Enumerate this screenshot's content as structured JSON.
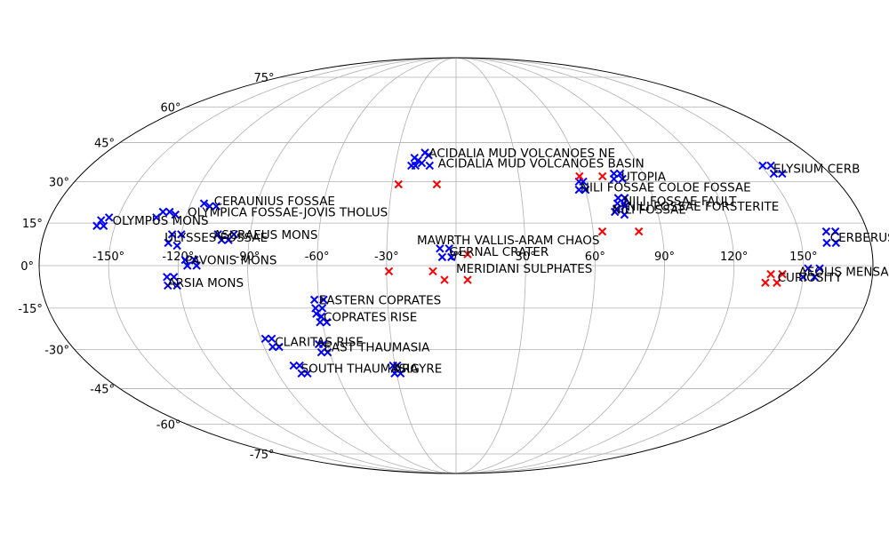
{
  "chart_data": {
    "type": "scatter",
    "projection": "mollweide",
    "grid": true,
    "colors": {
      "site": "#0000ff",
      "other": "#ff0000"
    },
    "lon_ticks": [
      "-150°",
      "-120°",
      "-90°",
      "-60°",
      "-30°",
      "0°",
      "30°",
      "60°",
      "90°",
      "120°",
      "150°"
    ],
    "lon_tick_values": [
      -150,
      -120,
      -90,
      -60,
      -30,
      0,
      30,
      60,
      90,
      120,
      150
    ],
    "lat_ticks": [
      "-75°",
      "-60°",
      "-45°",
      "-30°",
      "-15°",
      "0°",
      "15°",
      "30°",
      "45°",
      "60°",
      "75°"
    ],
    "lat_tick_values": [
      -75,
      -60,
      -45,
      -30,
      -15,
      0,
      15,
      30,
      45,
      60,
      75
    ],
    "series": [
      {
        "color": "#0000ff",
        "points": [
          [
            -14,
            40
          ],
          [
            -16,
            41
          ],
          [
            -19,
            38
          ],
          [
            -21,
            39
          ],
          [
            -13,
            36
          ],
          [
            -17,
            37
          ],
          [
            -20,
            36
          ],
          [
            -22,
            36
          ],
          [
            -154,
            17
          ],
          [
            -157,
            16
          ],
          [
            -155,
            14
          ],
          [
            -158,
            14
          ],
          [
            -128,
            19
          ],
          [
            -131,
            19
          ],
          [
            -125,
            18
          ],
          [
            -133,
            17
          ],
          [
            -111,
            21
          ],
          [
            -114,
            22
          ],
          [
            -108,
            21
          ],
          [
            -120,
            11
          ],
          [
            -124,
            11
          ],
          [
            -125,
            8
          ],
          [
            -121,
            7
          ],
          [
            -99,
            9
          ],
          [
            -102,
            9
          ],
          [
            -97,
            11
          ],
          [
            -104,
            11
          ],
          [
            -112,
            0
          ],
          [
            -113,
            2
          ],
          [
            -117,
            2
          ],
          [
            -116,
            0
          ],
          [
            -122,
            -4
          ],
          [
            -125,
            -4
          ],
          [
            -121,
            -7
          ],
          [
            -125,
            -7
          ],
          [
            -58,
            -12
          ],
          [
            -62,
            -12
          ],
          [
            -59,
            -15
          ],
          [
            -62,
            -15
          ],
          [
            -60,
            -18
          ],
          [
            -62,
            -17
          ],
          [
            -58,
            -20
          ],
          [
            -61,
            -20
          ],
          [
            -85,
            -26
          ],
          [
            -88,
            -26
          ],
          [
            -83,
            -29
          ],
          [
            -86,
            -29
          ],
          [
            -62,
            -28
          ],
          [
            -64,
            -28
          ],
          [
            -61,
            -31
          ],
          [
            -64,
            -31
          ],
          [
            -77,
            -36
          ],
          [
            -80,
            -36
          ],
          [
            -75,
            -39
          ],
          [
            -78,
            -39
          ],
          [
            -29,
            -36
          ],
          [
            -31,
            -36
          ],
          [
            -28,
            -39
          ],
          [
            -31,
            -39
          ],
          [
            -3,
            6
          ],
          [
            -7,
            6
          ],
          [
            -2,
            3
          ],
          [
            -6,
            3
          ],
          [
            58,
            30
          ],
          [
            60,
            30
          ],
          [
            57,
            27
          ],
          [
            60,
            27
          ],
          [
            76,
            33
          ],
          [
            79,
            33
          ],
          [
            75,
            31
          ],
          [
            79,
            31
          ],
          [
            74,
            24
          ],
          [
            77,
            24
          ],
          [
            73,
            22
          ],
          [
            76,
            22
          ],
          [
            72,
            20
          ],
          [
            76,
            21
          ],
          [
            71,
            19
          ],
          [
            75,
            18
          ],
          [
            151,
            36
          ],
          [
            155,
            36
          ],
          [
            153,
            33
          ],
          [
            157,
            33
          ],
          [
            162,
            12
          ],
          [
            166,
            12
          ],
          [
            161,
            8
          ],
          [
            165,
            8
          ],
          [
            152,
            -1
          ],
          [
            157,
            -1
          ],
          [
            150,
            -4
          ],
          [
            155,
            -4
          ]
        ]
      },
      {
        "color": "#ff0000",
        "points": [
          [
            -27,
            29
          ],
          [
            -9,
            29
          ],
          [
            59,
            32
          ],
          [
            70,
            32
          ],
          [
            64,
            12
          ],
          [
            80,
            12
          ],
          [
            -29,
            -2
          ],
          [
            -10,
            -2
          ],
          [
            -5,
            -5
          ],
          [
            5,
            4
          ],
          [
            5,
            -5
          ],
          [
            136,
            -3
          ],
          [
            141,
            -3
          ],
          [
            134,
            -6
          ],
          [
            139,
            -6
          ]
        ]
      }
    ],
    "annotations": [
      {
        "text": "ACIDALIA MUD VOLCANOES NE",
        "lon": -14,
        "lat": 41
      },
      {
        "text": "ACIDALIA MUD VOLCANOES BASIN",
        "lon": -9,
        "lat": 37
      },
      {
        "text": "ELYSIUM CERB",
        "lon": 155,
        "lat": 35
      },
      {
        "text": "UTOPIA",
        "lon": 79,
        "lat": 32
      },
      {
        "text": "NILI FOSSAE COLOE FOSSAE",
        "lon": 58,
        "lat": 28
      },
      {
        "text": "NILI FOSSAE FAULT",
        "lon": 76,
        "lat": 23
      },
      {
        "text": "NILI FOSSAE FORSTERITE",
        "lon": 77,
        "lat": 21
      },
      {
        "text": "NILI FOSSAE",
        "lon": 70,
        "lat": 20
      },
      {
        "text": "CERAUNIUS FOSSAE",
        "lon": -110,
        "lat": 23
      },
      {
        "text": "OLYMPICA FOSSAE-JOVIS THOLUS",
        "lon": -120,
        "lat": 19
      },
      {
        "text": "OLYMPUS MONS",
        "lon": -152,
        "lat": 16
      },
      {
        "text": "ASCRAEUS MONS",
        "lon": -106,
        "lat": 11
      },
      {
        "text": "ULYSSES FOSSAE",
        "lon": -127,
        "lat": 10
      },
      {
        "text": "PAVONIS MONS",
        "lon": -117,
        "lat": 2
      },
      {
        "text": "ARSIA MONS",
        "lon": -125,
        "lat": -6
      },
      {
        "text": "MAWRTH VALLIS-ARAM CHAOS",
        "lon": -17,
        "lat": 9
      },
      {
        "text": "GERNAL CRATER",
        "lon": -3,
        "lat": 5
      },
      {
        "text": "MERIDIANI SULPHATES",
        "lon": 0,
        "lat": -1
      },
      {
        "text": "CERBERUS",
        "lon": 163,
        "lat": 10
      },
      {
        "text": "AEOLIS MENSAE",
        "lon": 148,
        "lat": -2
      },
      {
        "text": "CURIOSITY",
        "lon": 139,
        "lat": -4
      },
      {
        "text": "EASTERN COPRATES",
        "lon": -60,
        "lat": -12
      },
      {
        "text": "COPRATES RISE",
        "lon": -59,
        "lat": -18
      },
      {
        "text": "CLARITAS RISE",
        "lon": -84,
        "lat": -27
      },
      {
        "text": "EAST THAUMASIA",
        "lon": -62,
        "lat": -29
      },
      {
        "text": "SOUTH THAUMASIA",
        "lon": -77,
        "lat": -37
      },
      {
        "text": "ARGYRE",
        "lon": -31,
        "lat": -37
      }
    ]
  }
}
